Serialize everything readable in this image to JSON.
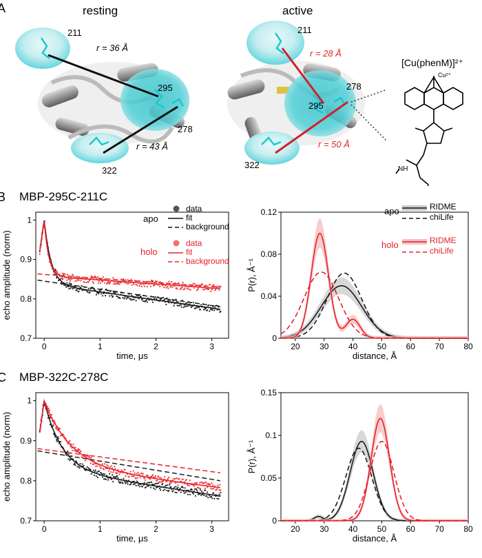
{
  "panel_a": {
    "letter": "A",
    "resting": {
      "title": "resting",
      "site1": "211",
      "site2": "295",
      "site3": "278",
      "site4": "322",
      "r1": "r = 36 Å",
      "r2": "r = 43 Å"
    },
    "active": {
      "title": "active",
      "site1": "211",
      "site2": "295",
      "site3": "278",
      "site4": "322",
      "r1": "r = 28 Å",
      "r2": "r = 50 Å"
    },
    "label_name": "[Cu(phenM)]²⁺",
    "cu_label": "Cu²⁺",
    "nh_label": "NH"
  },
  "panel_b": {
    "letter": "B",
    "title": "MBP-295C-211C"
  },
  "panel_c": {
    "letter": "C",
    "title": "MBP-322C-278C"
  },
  "colors": {
    "apo": "#1a1a1a",
    "holo": "#e8202a",
    "cyan": "#19c8d2"
  },
  "chart_data": [
    {
      "id": "B-time",
      "type": "scatter",
      "xlabel": "time, μs",
      "ylabel": "echo amplitude (norm)",
      "xlim": [
        -0.15,
        3.3
      ],
      "ylim": [
        0.7,
        1.02
      ],
      "xticks": [
        0,
        1,
        2,
        3
      ],
      "yticks": [
        0.7,
        0.8,
        0.9,
        1
      ],
      "ytick_labels": [
        "0.7",
        "0.8",
        "0.9",
        "1"
      ],
      "legend": {
        "apo": "apo",
        "holo": "holo",
        "data": "data",
        "fit": "fit",
        "background": "background"
      },
      "series": [
        {
          "name": "apo",
          "color": "#1a1a1a",
          "bg_start": 0.845,
          "bg_end": 0.78,
          "plateau": 0.838,
          "decay": 0.12,
          "peak": 1.0
        },
        {
          "name": "holo",
          "color": "#e8202a",
          "bg_start": 0.862,
          "bg_end": 0.83,
          "plateau": 0.858,
          "decay": 0.08,
          "peak": 1.0
        }
      ]
    },
    {
      "id": "B-dist",
      "type": "line",
      "xlabel": "distance, Å",
      "ylabel": "P(r), Å⁻¹",
      "xlim": [
        15,
        80
      ],
      "ylim": [
        0,
        0.12
      ],
      "xticks": [
        20,
        30,
        40,
        50,
        60,
        70,
        80
      ],
      "yticks": [
        0,
        0.04,
        0.08,
        0.12
      ],
      "ytick_labels": [
        "0",
        "0.04",
        "0.08",
        "0.12"
      ],
      "legend": {
        "apo": "apo",
        "holo": "holo",
        "ridme": "RIDME",
        "chilife": "chiLife"
      },
      "series": [
        {
          "name": "apo RIDME",
          "color": "#1a1a1a",
          "dash": false,
          "gaussians": [
            [
              36,
              7,
              0.05
            ]
          ]
        },
        {
          "name": "apo chiLife",
          "color": "#1a1a1a",
          "dash": true,
          "gaussians": [
            [
              37,
              6,
              0.062
            ]
          ]
        },
        {
          "name": "holo RIDME",
          "color": "#e8202a",
          "dash": false,
          "gaussians": [
            [
              28.5,
              3,
              0.1
            ],
            [
              40,
              2.5,
              0.018
            ]
          ]
        },
        {
          "name": "holo chiLife",
          "color": "#e8202a",
          "dash": true,
          "gaussians": [
            [
              29,
              6,
              0.063
            ]
          ]
        }
      ]
    },
    {
      "id": "C-time",
      "type": "scatter",
      "xlabel": "time, μs",
      "ylabel": "echo amplitude (norm)",
      "xlim": [
        -0.15,
        3.3
      ],
      "ylim": [
        0.7,
        1.02
      ],
      "xticks": [
        0,
        1,
        2,
        3
      ],
      "yticks": [
        0.7,
        0.8,
        0.9,
        1
      ],
      "ytick_labels": [
        "0.7",
        "0.8",
        "0.9",
        "1"
      ],
      "series": [
        {
          "name": "apo",
          "color": "#1a1a1a",
          "bg_start": 0.872,
          "bg_end": 0.8,
          "plateau": 0.83,
          "decay": 0.3,
          "peak": 1.0
        },
        {
          "name": "holo",
          "color": "#e8202a",
          "bg_start": 0.878,
          "bg_end": 0.82,
          "plateau": 0.838,
          "decay": 0.45,
          "peak": 1.0
        }
      ]
    },
    {
      "id": "C-dist",
      "type": "line",
      "xlabel": "distance, Å",
      "ylabel": "P(r), Å⁻¹",
      "xlim": [
        15,
        80
      ],
      "ylim": [
        0,
        0.15
      ],
      "xticks": [
        20,
        30,
        40,
        50,
        60,
        70,
        80
      ],
      "yticks": [
        0,
        0.05,
        0.1,
        0.15
      ],
      "ytick_labels": [
        "0",
        "0.05",
        "0.1",
        "0.15"
      ],
      "series": [
        {
          "name": "apo RIDME",
          "color": "#1a1a1a",
          "dash": false,
          "gaussians": [
            [
              43,
              4,
              0.093
            ],
            [
              28,
              1.5,
              0.005
            ]
          ]
        },
        {
          "name": "apo chiLife",
          "color": "#1a1a1a",
          "dash": true,
          "gaussians": [
            [
              42,
              4.5,
              0.085
            ]
          ]
        },
        {
          "name": "holo RIDME",
          "color": "#e8202a",
          "dash": false,
          "gaussians": [
            [
              49.5,
              3.2,
              0.12
            ]
          ]
        },
        {
          "name": "holo chiLife",
          "color": "#e8202a",
          "dash": true,
          "gaussians": [
            [
              50,
              4.2,
              0.093
            ]
          ]
        }
      ]
    }
  ]
}
